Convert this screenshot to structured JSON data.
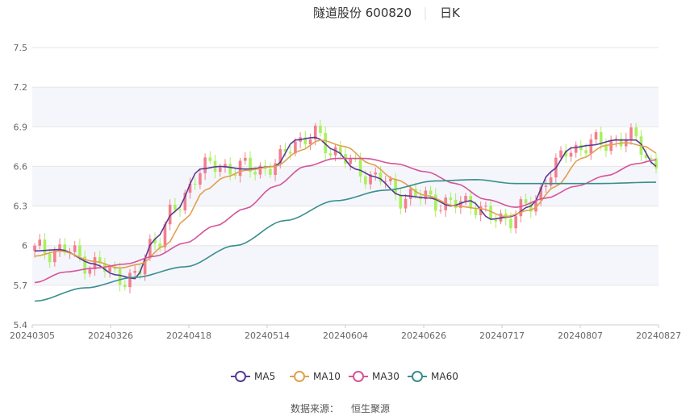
{
  "chart_data": {
    "type": "candlestick",
    "title": "隧道股份 600820",
    "period": "日K",
    "ylim": [
      5.4,
      7.5
    ],
    "y_ticks": [
      "5.4",
      "5.7",
      "6",
      "6.3",
      "6.6",
      "6.9",
      "7.2",
      "7.5"
    ],
    "x_ticks": [
      "20240305",
      "20240326",
      "20240418",
      "20240514",
      "20240604",
      "20240626",
      "20240717",
      "20240807",
      "20240827"
    ],
    "colors": {
      "up": "#f27f8c",
      "down": "#a9f05f",
      "ma5": "#5a3a96",
      "ma10": "#e0a04e",
      "ma30": "#d6549a",
      "ma60": "#3a8e8c",
      "grid": "#e6e6e6",
      "band": "#f4f6fb",
      "axis_text": "#666666"
    },
    "legend": [
      {
        "key": "ma5",
        "label": "MA5"
      },
      {
        "key": "ma10",
        "label": "MA10"
      },
      {
        "key": "ma30",
        "label": "MA30"
      },
      {
        "key": "ma60",
        "label": "MA60"
      }
    ],
    "ma_anchors": {
      "ma5": [
        [
          0,
          5.96
        ],
        [
          5,
          5.97
        ],
        [
          12,
          5.86
        ],
        [
          16,
          5.78
        ],
        [
          20,
          5.75
        ],
        [
          24,
          6.05
        ],
        [
          28,
          6.26
        ],
        [
          33,
          6.58
        ],
        [
          37,
          6.6
        ],
        [
          42,
          6.58
        ],
        [
          48,
          6.6
        ],
        [
          52,
          6.8
        ],
        [
          56,
          6.82
        ],
        [
          60,
          6.72
        ],
        [
          64,
          6.58
        ],
        [
          68,
          6.52
        ],
        [
          73,
          6.38
        ],
        [
          79,
          6.36
        ],
        [
          83,
          6.3
        ],
        [
          87,
          6.34
        ],
        [
          91,
          6.2
        ],
        [
          95,
          6.22
        ],
        [
          99,
          6.3
        ],
        [
          103,
          6.56
        ],
        [
          107,
          6.74
        ],
        [
          111,
          6.76
        ],
        [
          116,
          6.8
        ],
        [
          120,
          6.8
        ],
        [
          124,
          6.6
        ]
      ],
      "ma10": [
        [
          0,
          5.92
        ],
        [
          5,
          5.96
        ],
        [
          12,
          5.88
        ],
        [
          17,
          5.83
        ],
        [
          21,
          5.86
        ],
        [
          26,
          6.0
        ],
        [
          30,
          6.2
        ],
        [
          34,
          6.42
        ],
        [
          38,
          6.52
        ],
        [
          42,
          6.57
        ],
        [
          48,
          6.6
        ],
        [
          53,
          6.72
        ],
        [
          57,
          6.8
        ],
        [
          62,
          6.75
        ],
        [
          67,
          6.62
        ],
        [
          72,
          6.5
        ],
        [
          78,
          6.38
        ],
        [
          84,
          6.3
        ],
        [
          89,
          6.28
        ],
        [
          94,
          6.22
        ],
        [
          99,
          6.27
        ],
        [
          104,
          6.45
        ],
        [
          109,
          6.66
        ],
        [
          114,
          6.76
        ],
        [
          118,
          6.78
        ],
        [
          122,
          6.75
        ],
        [
          124,
          6.7
        ]
      ],
      "ma30": [
        [
          0,
          5.72
        ],
        [
          6,
          5.8
        ],
        [
          12,
          5.83
        ],
        [
          18,
          5.86
        ],
        [
          24,
          5.92
        ],
        [
          30,
          6.02
        ],
        [
          36,
          6.15
        ],
        [
          42,
          6.28
        ],
        [
          48,
          6.45
        ],
        [
          54,
          6.6
        ],
        [
          60,
          6.66
        ],
        [
          66,
          6.66
        ],
        [
          72,
          6.62
        ],
        [
          78,
          6.56
        ],
        [
          84,
          6.47
        ],
        [
          90,
          6.35
        ],
        [
          96,
          6.29
        ],
        [
          102,
          6.36
        ],
        [
          108,
          6.45
        ],
        [
          114,
          6.53
        ],
        [
          120,
          6.62
        ],
        [
          124,
          6.65
        ]
      ],
      "ma60": [
        [
          0,
          5.58
        ],
        [
          10,
          5.68
        ],
        [
          20,
          5.76
        ],
        [
          30,
          5.84
        ],
        [
          40,
          6.0
        ],
        [
          50,
          6.19
        ],
        [
          60,
          6.34
        ],
        [
          70,
          6.42
        ],
        [
          80,
          6.49
        ],
        [
          88,
          6.5
        ],
        [
          96,
          6.47
        ],
        [
          104,
          6.47
        ],
        [
          112,
          6.47
        ],
        [
          124,
          6.48
        ]
      ]
    },
    "source_label": "数据来源：",
    "source_name": "恒生聚源"
  }
}
